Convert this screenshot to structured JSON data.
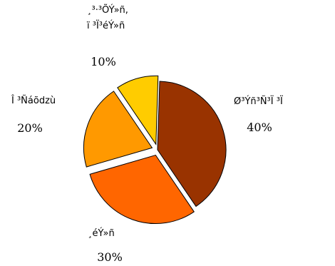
{
  "chart_data": {
    "type": "pie",
    "slices": [
      {
        "name": "Ø³Ýñ³Ñ³Ï ³Ï",
        "value": 40,
        "color": "#993300",
        "exploded": false,
        "label_lines": [
          "Ø³Ýñ³Ñ³Ï ³Ï"
        ],
        "pct_label": "40%"
      },
      {
        "name": "¸éÝ»ñ",
        "value": 30,
        "color": "#FF6600",
        "exploded": true,
        "label_lines": [
          "¸éÝ»ñ"
        ],
        "pct_label": "30%"
      },
      {
        "name": "Î ³Ñáõdzù",
        "value": 20,
        "color": "#FF9900",
        "exploded": true,
        "label_lines": [
          "Î ³Ñáõdzù"
        ],
        "pct_label": "20%"
      },
      {
        "name": "¸³·³ÕÝ»ñ, ï ³Ï³éÝ»ñ",
        "value": 10,
        "color": "#FFCC00",
        "exploded": true,
        "label_lines": [
          "¸³·³ÕÝ»ñ,",
          "ï ³Ï³éÝ»ñ"
        ],
        "pct_label": "10%"
      }
    ],
    "border_color": "#000000"
  }
}
